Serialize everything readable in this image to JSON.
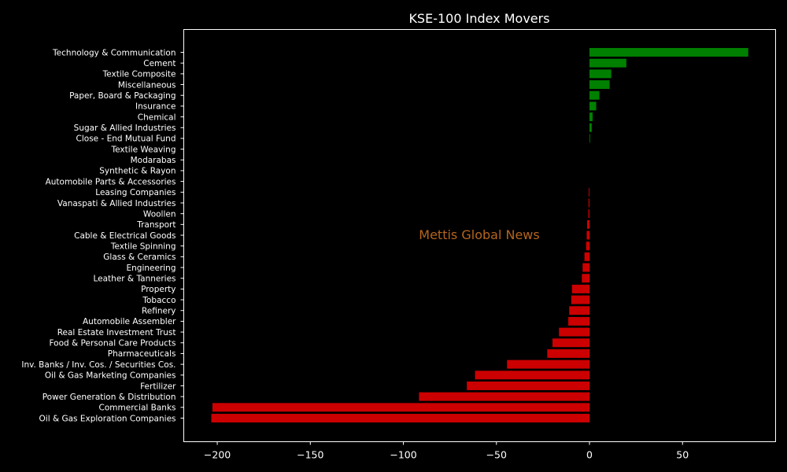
{
  "chart_data": {
    "type": "bar",
    "orientation": "horizontal",
    "title": "KSE-100 Index Movers",
    "watermark": "Mettis Global News",
    "xlabel": "",
    "ylabel": "",
    "xlim": [
      -218,
      100
    ],
    "xticks": [
      -200,
      -150,
      -100,
      -50,
      0,
      50
    ],
    "xtick_labels": [
      "−200",
      "−150",
      "−100",
      "−50",
      "0",
      "50"
    ],
    "colors": {
      "positive": "#008000",
      "negative": "#cc0000",
      "background": "#000000",
      "axis": "#ffffff"
    },
    "categories": [
      "Technology & Communication",
      "Cement",
      "Textile Composite",
      "Miscellaneous",
      "Paper, Board & Packaging",
      "Insurance",
      "Chemical",
      "Sugar & Allied Industries",
      "Close - End Mutual Fund",
      "Textile Weaving",
      "Modarabas",
      "Synthetic & Rayon",
      "Automobile Parts & Accessories",
      "Leasing Companies",
      "Vanaspati & Allied Industries",
      "Woollen",
      "Transport",
      "Cable & Electrical Goods",
      "Textile Spinning",
      "Glass & Ceramics",
      "Engineering",
      "Leather & Tanneries",
      "Property",
      "Tobacco",
      "Refinery",
      "Automobile Assembler",
      "Real Estate Investment Trust",
      "Food & Personal Care Products",
      "Pharmaceuticals",
      "Inv. Banks / Inv. Cos. / Securities Cos.",
      "Oil & Gas Marketing Companies",
      "Fertilizer",
      "Power Generation & Distribution",
      "Commercial Banks",
      "Oil & Gas Exploration Companies"
    ],
    "values": [
      85.3,
      19.8,
      11.7,
      10.8,
      5.3,
      3.6,
      1.7,
      1.2,
      0.3,
      0,
      0,
      0,
      0,
      -0.4,
      -0.5,
      -0.6,
      -1.3,
      -1.5,
      -1.8,
      -2.7,
      -3.7,
      -4.1,
      -9.4,
      -9.8,
      -10.9,
      -11.4,
      -16.4,
      -19.9,
      -22.7,
      -44.3,
      -61.5,
      -65.9,
      -91.6,
      -202.6,
      -203.2
    ]
  }
}
